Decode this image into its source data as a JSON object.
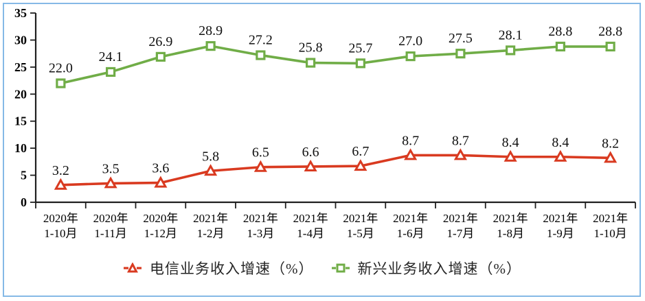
{
  "frame": {
    "border_color": "#85b9e6",
    "background": "#ffffff"
  },
  "chart_data": {
    "type": "line",
    "title": "",
    "xlabel": "",
    "ylabel": "",
    "ylim": [
      0,
      35
    ],
    "yticks": [
      0,
      5,
      10,
      15,
      20,
      25,
      30,
      35
    ],
    "grid": false,
    "legend_position": "bottom",
    "axis_color": "#1f1f1f",
    "categories": [
      {
        "line1": "2020年",
        "line2": "1-10月"
      },
      {
        "line1": "2020年",
        "line2": "1-11月"
      },
      {
        "line1": "2020年",
        "line2": "1-12月"
      },
      {
        "line1": "2021年",
        "line2": "1-2月"
      },
      {
        "line1": "2021年",
        "line2": "1-3月"
      },
      {
        "line1": "2021年",
        "line2": "1-4月"
      },
      {
        "line1": "2021年",
        "line2": "1-5月"
      },
      {
        "line1": "2021年",
        "line2": "1-6月"
      },
      {
        "line1": "2021年",
        "line2": "1-7月"
      },
      {
        "line1": "2021年",
        "line2": "1-8月"
      },
      {
        "line1": "2021年",
        "line2": "1-9月"
      },
      {
        "line1": "2021年",
        "line2": "1-10月"
      }
    ],
    "series": [
      {
        "name": "电信业务收入增速（%）",
        "marker": "triangle",
        "color": "#d93a20",
        "values": [
          3.2,
          3.5,
          3.6,
          5.8,
          6.5,
          6.6,
          6.7,
          8.7,
          8.7,
          8.4,
          8.4,
          8.2
        ]
      },
      {
        "name": "新兴业务收入增速（%）",
        "marker": "square",
        "color": "#70ad47",
        "values": [
          22.0,
          24.1,
          26.9,
          28.9,
          27.2,
          25.8,
          25.7,
          27.0,
          27.5,
          28.1,
          28.8,
          28.8
        ]
      }
    ]
  }
}
